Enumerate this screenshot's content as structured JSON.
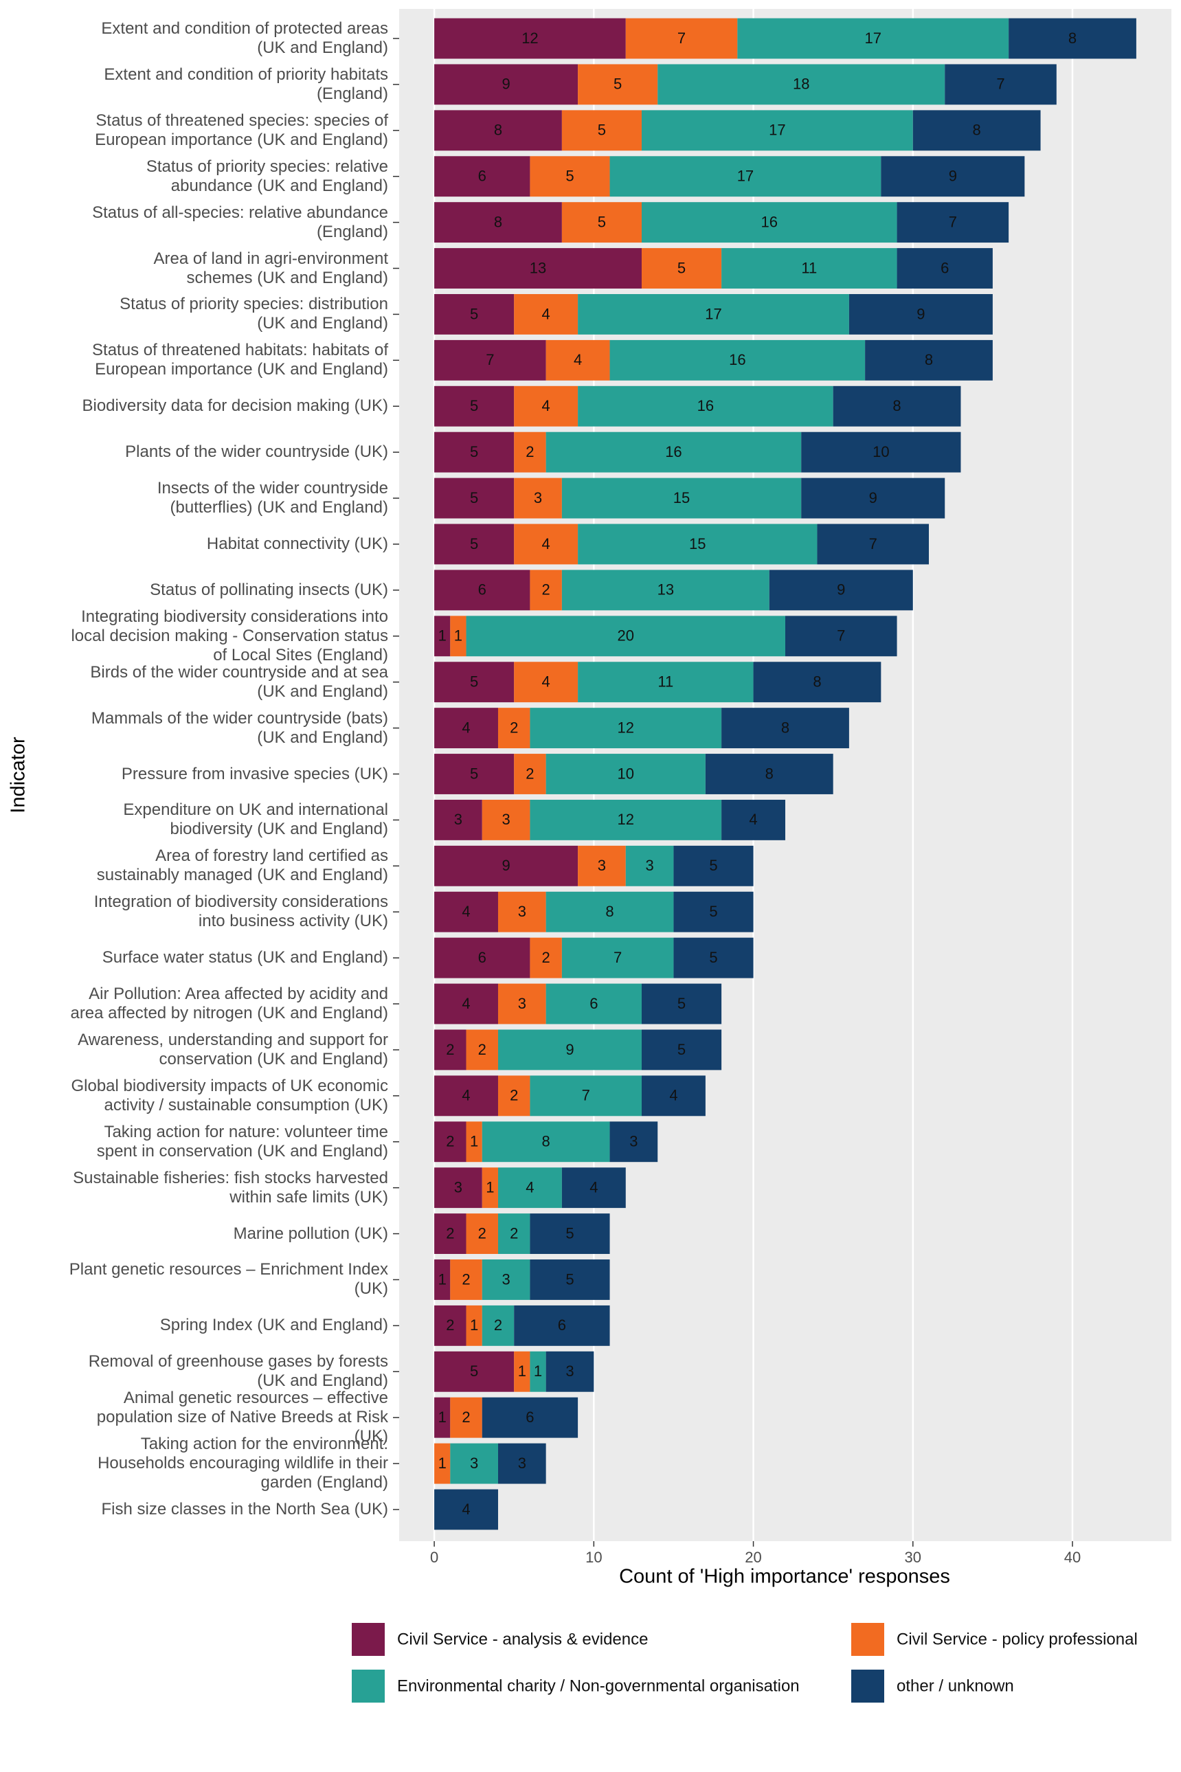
{
  "chart_data": {
    "type": "stacked-barh",
    "xlabel": "Count of 'High importance' responses",
    "ylabel": "Indicator",
    "categories": [
      "Extent and condition of protected areas\n(UK and England)",
      "Extent and condition of priority habitats\n(England)",
      "Status of threatened species: species of\nEuropean importance  (UK and England)",
      "Status of priority species: relative\nabundance (UK and England)",
      "Status of all-species: relative abundance\n(England)",
      "Area of land in agri-environment\nschemes (UK and England)",
      "Status of priority species: distribution\n(UK and England)",
      "Status of threatened habitats: habitats of\nEuropean importance (UK and England)",
      "Biodiversity data for decision making (UK)",
      "Plants of the wider countryside (UK)",
      "Insects of the wider countryside\n(butterflies) (UK and England)",
      "Habitat connectivity (UK)",
      "Status of pollinating insects (UK)",
      "Integrating biodiversity considerations into\nlocal decision making - Conservation status\nof Local Sites (England)",
      "Birds of the wider countryside and at sea\n(UK and England)",
      "Mammals of the wider countryside (bats)\n(UK and England)",
      "Pressure from invasive species (UK)",
      "Expenditure on UK and international\nbiodiversity (UK and England)",
      "Area of forestry land certified as\nsustainably managed (UK and England)",
      "Integration of biodiversity considerations\ninto business activity (UK)",
      "Surface water status (UK and England)",
      "Air Pollution: Area affected by acidity and\narea affected by nitrogen (UK and England)",
      "Awareness, understanding and support for\nconservation (UK and England)",
      "Global biodiversity impacts of UK economic\nactivity / sustainable consumption (UK)",
      "Taking action for nature: volunteer time\nspent in conservation (UK and England)",
      "Sustainable fisheries: fish stocks harvested\nwithin safe limits (UK)",
      "Marine pollution (UK)",
      "Plant genetic resources – Enrichment Index\n(UK)",
      "Spring Index (UK and England)",
      "Removal of greenhouse gases by forests\n(UK and England)",
      "Animal genetic resources – effective\npopulation size of Native Breeds at Risk\n(UK)",
      "Taking action for the environment:\nHouseholds encouraging wildlife in their\ngarden (England)",
      "Fish size classes in the North Sea (UK)"
    ],
    "series": [
      {
        "name": "Civil Service - analysis & evidence",
        "color": "#7b1a4b",
        "values": [
          12,
          9,
          8,
          6,
          8,
          13,
          5,
          7,
          5,
          5,
          5,
          5,
          6,
          1,
          5,
          4,
          5,
          3,
          9,
          4,
          6,
          4,
          2,
          4,
          2,
          3,
          2,
          1,
          2,
          5,
          1,
          null,
          null
        ]
      },
      {
        "name": "Civil Service - policy professional",
        "color": "#f26b21",
        "values": [
          7,
          5,
          5,
          5,
          5,
          5,
          4,
          4,
          4,
          2,
          3,
          4,
          2,
          1,
          4,
          2,
          2,
          3,
          3,
          3,
          2,
          3,
          2,
          2,
          1,
          1,
          2,
          2,
          1,
          1,
          2,
          1,
          null
        ]
      },
      {
        "name": "Environmental charity / Non-governmental organisation",
        "color": "#27a195",
        "values": [
          17,
          18,
          17,
          17,
          16,
          11,
          17,
          16,
          16,
          16,
          15,
          15,
          13,
          20,
          11,
          12,
          10,
          12,
          3,
          8,
          7,
          6,
          9,
          7,
          8,
          4,
          2,
          3,
          2,
          1,
          null,
          3,
          null
        ]
      },
      {
        "name": "other / unknown",
        "color": "#143f6b",
        "values": [
          8,
          7,
          8,
          9,
          7,
          6,
          9,
          8,
          8,
          10,
          9,
          7,
          9,
          7,
          8,
          8,
          8,
          4,
          5,
          5,
          5,
          5,
          5,
          4,
          3,
          4,
          5,
          5,
          6,
          3,
          6,
          3,
          4
        ]
      }
    ],
    "xlim": [
      -2.2,
      46.2
    ],
    "xticks": [
      0,
      10,
      20,
      30,
      40
    ],
    "grid": true
  }
}
